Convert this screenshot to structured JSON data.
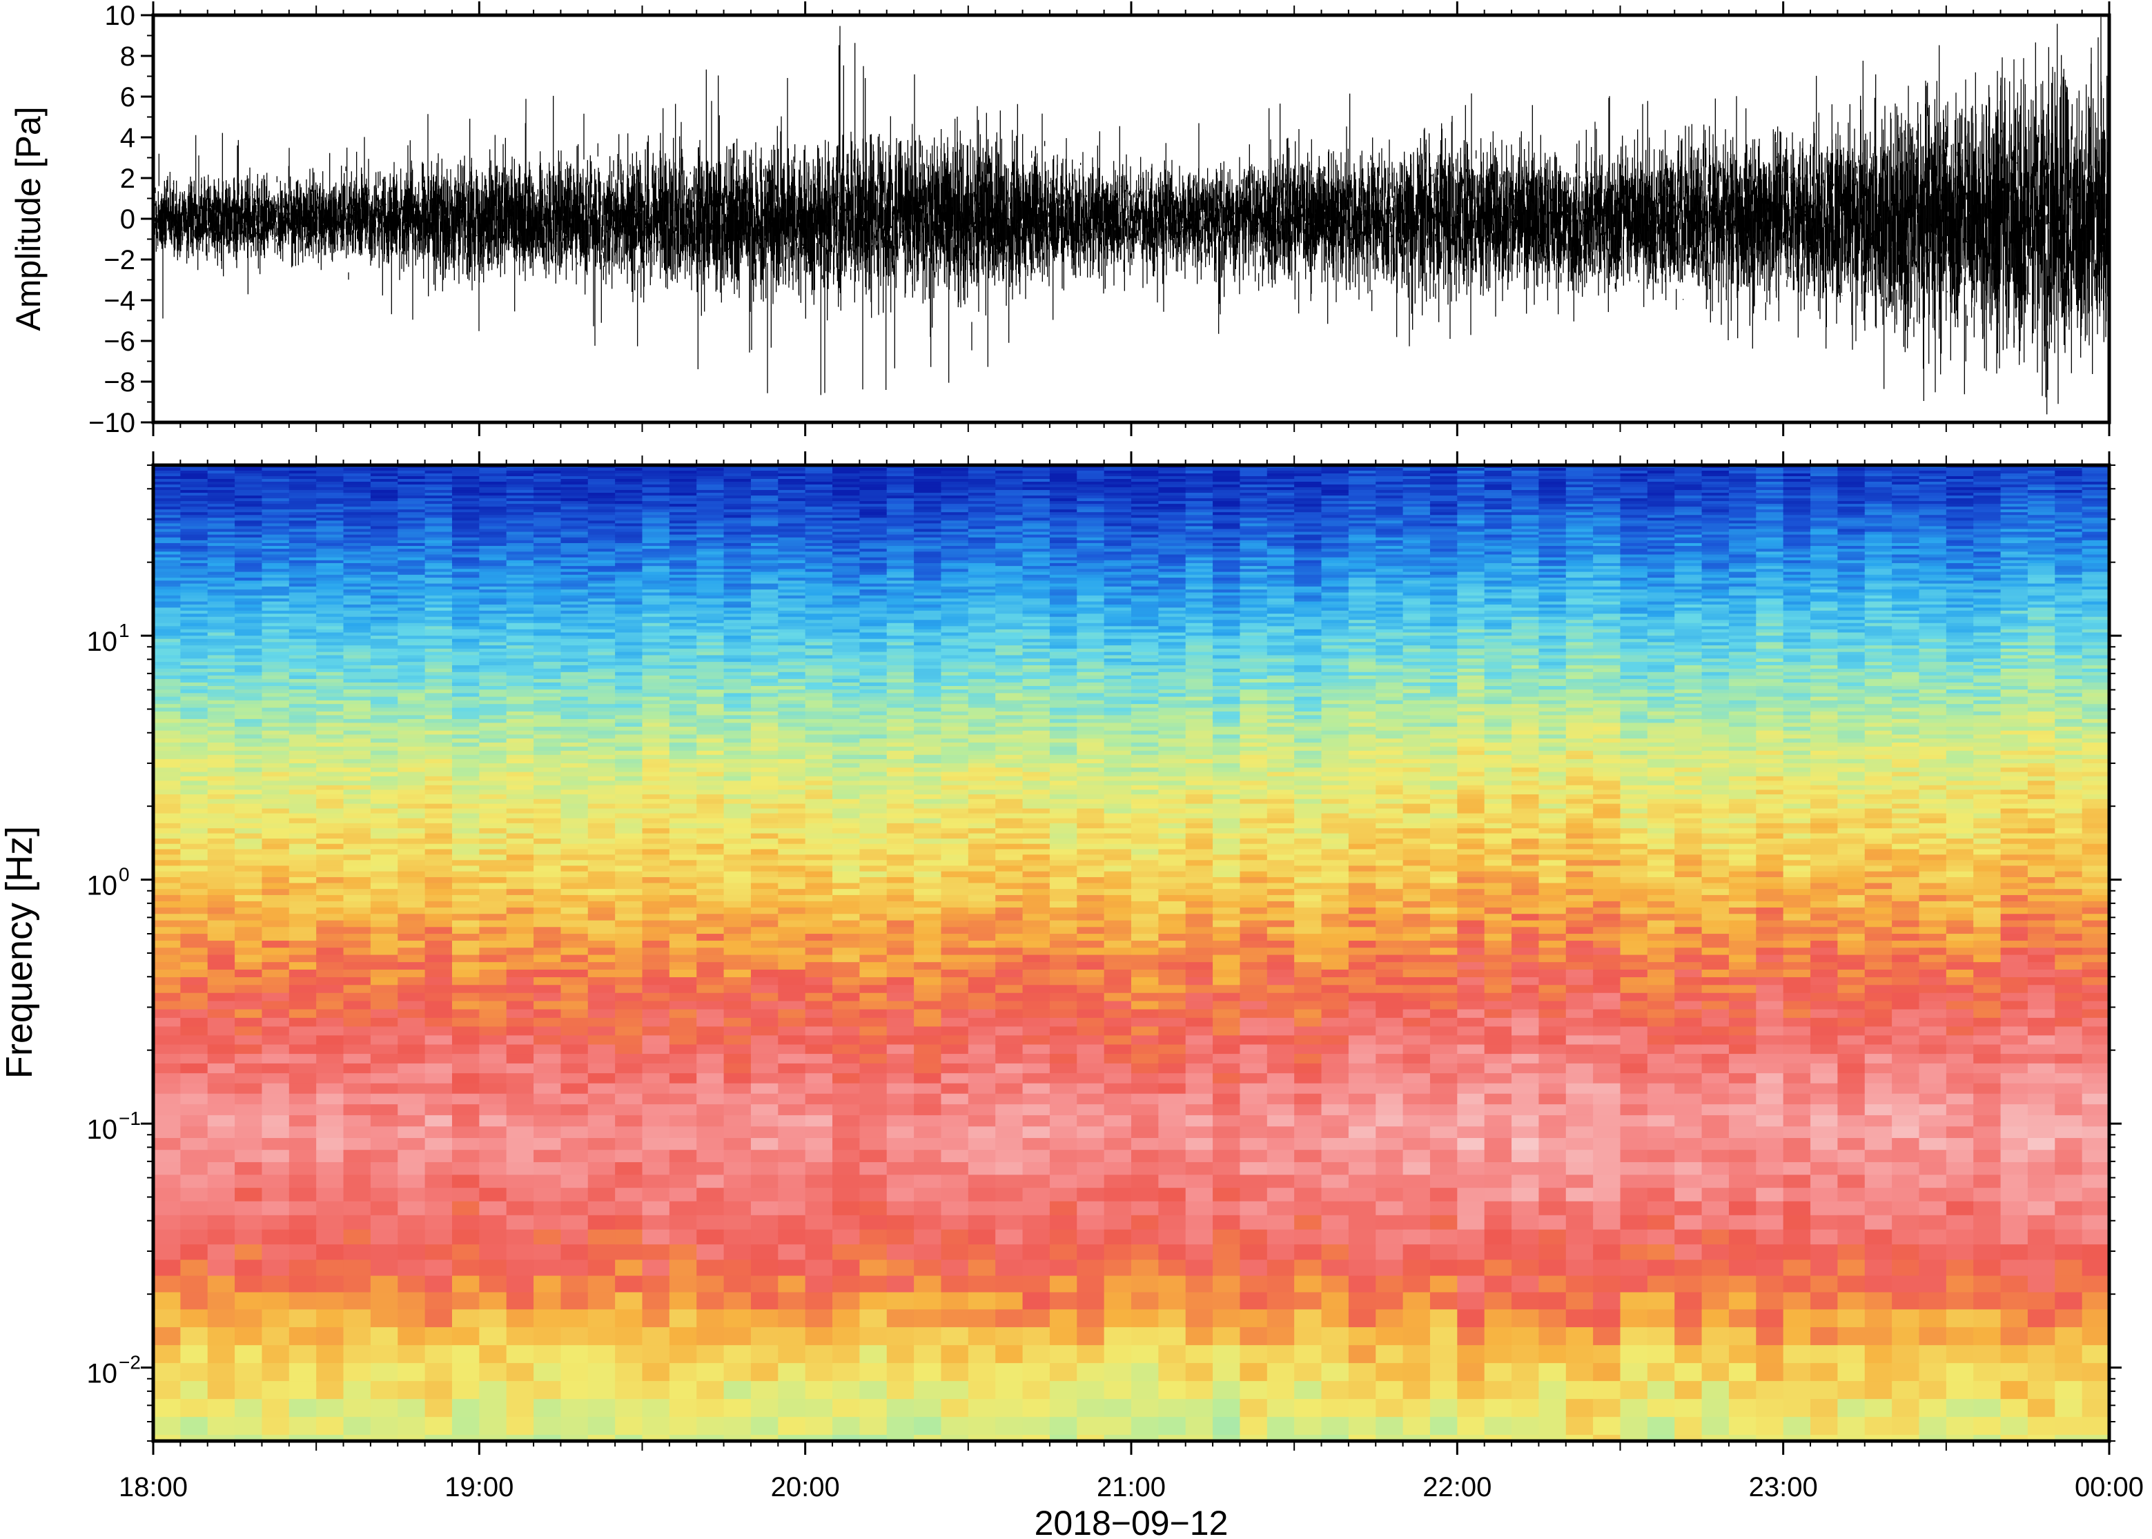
{
  "chart_data": [
    {
      "type": "line",
      "panel": "waveform",
      "ylabel": "Amplitude [Pa]",
      "ylim": [
        -10,
        10
      ],
      "yticks": [
        -10,
        -8,
        -6,
        -4,
        -2,
        0,
        2,
        4,
        6,
        8,
        10
      ],
      "ytick_labels": [
        "−10",
        "−8",
        "−6",
        "−4",
        "−2",
        "0",
        "2",
        "4",
        "6",
        "8",
        "10"
      ],
      "x_range": [
        "18:00",
        "00:00"
      ],
      "line_color": "#000000",
      "series": [
        {
          "time_h": [
            18.0,
            18.5,
            19.0,
            19.5,
            20.0,
            20.5,
            21.0,
            21.5,
            22.0,
            22.5,
            23.0,
            23.5,
            24.0
          ],
          "envelope": [
            2.2,
            2.0,
            3.0,
            3.2,
            4.0,
            4.3,
            2.3,
            3.2,
            4.0,
            3.5,
            4.3,
            6.5,
            7.5
          ],
          "peak": [
            5.2,
            3.8,
            6.4,
            6.5,
            10.0,
            8.0,
            4.8,
            6.4,
            6.6,
            6.3,
            7.2,
            10.0,
            10.0
          ]
        }
      ]
    },
    {
      "type": "heatmap",
      "panel": "spectrogram",
      "ylabel": "Frequency [Hz]",
      "yscale": "log",
      "ylim": [
        0.005,
        50
      ],
      "yticks": [
        0.01,
        0.1,
        1,
        10
      ],
      "ytick_labels": [
        {
          "base": "10",
          "exp": "−2"
        },
        {
          "base": "10",
          "exp": "−1"
        },
        {
          "base": "10",
          "exp": "0"
        },
        {
          "base": "10",
          "exp": "1"
        }
      ],
      "xtick_labels": [
        "18:00",
        "19:00",
        "20:00",
        "21:00",
        "22:00",
        "23:00",
        "00:00"
      ],
      "xlabel": "2018−09−12",
      "colormap": [
        "#0a1fb0",
        "#1b58d8",
        "#2aa6ee",
        "#66d8e8",
        "#b8ec9c",
        "#f2ea6e",
        "#f7b240",
        "#ef5a52",
        "#f69090",
        "#f8c8c8"
      ],
      "bands": [
        {
          "freq_hz": 40,
          "level": 0.05
        },
        {
          "freq_hz": 10,
          "level": 0.3
        },
        {
          "freq_hz": 3,
          "level": 0.5
        },
        {
          "freq_hz": 1,
          "level": 0.62
        },
        {
          "freq_hz": 0.4,
          "level": 0.74
        },
        {
          "freq_hz": 0.1,
          "level": 0.9
        },
        {
          "freq_hz": 0.03,
          "level": 0.78
        },
        {
          "freq_hz": 0.012,
          "level": 0.6
        },
        {
          "freq_hz": 0.006,
          "level": 0.5
        }
      ]
    }
  ]
}
